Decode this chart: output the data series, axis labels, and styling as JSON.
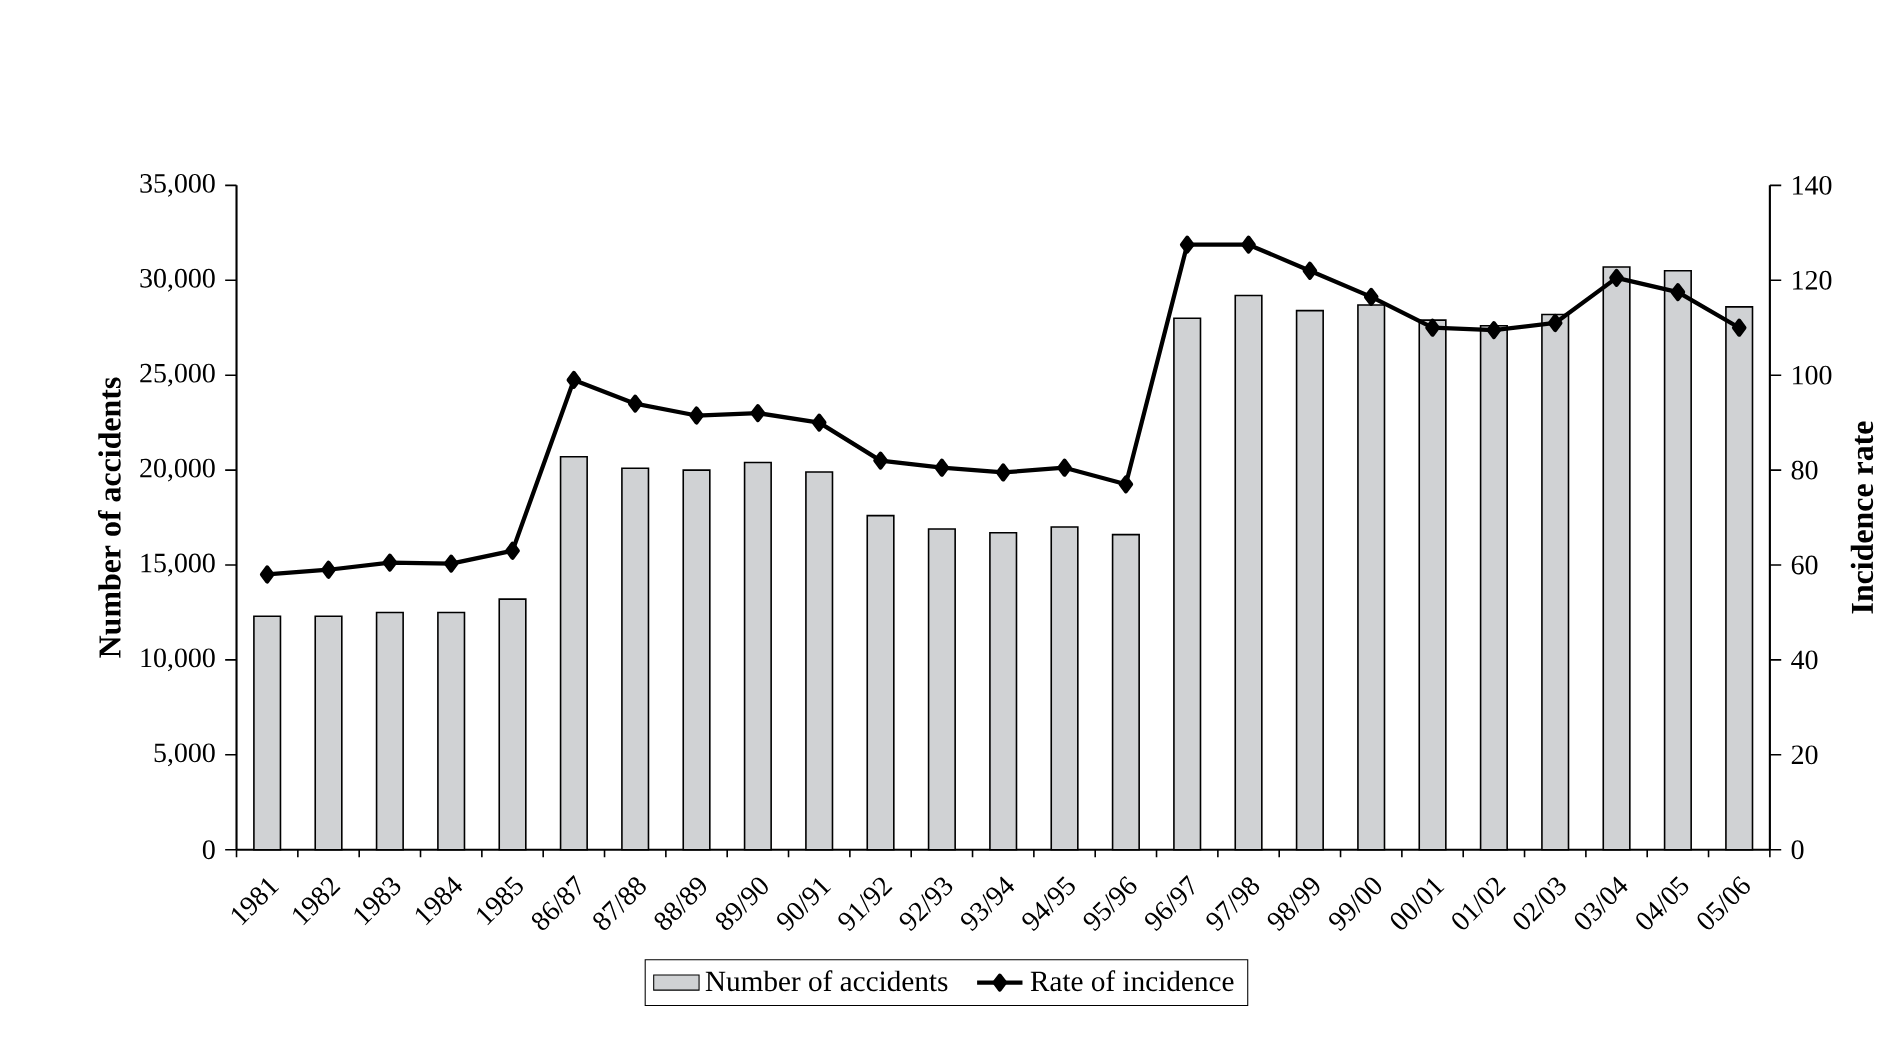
{
  "chart_data": {
    "type": "bar",
    "categories": [
      "1981",
      "1982",
      "1983",
      "1984",
      "1985",
      "86/87",
      "87/88",
      "88/89",
      "89/90",
      "90/91",
      "91/92",
      "92/93",
      "93/94",
      "94/95",
      "95/96",
      "96/97",
      "97/98",
      "98/99",
      "99/00",
      "00/01",
      "01/02",
      "02/03",
      "03/04",
      "04/05",
      "05/06"
    ],
    "series": [
      {
        "name": "Number of accidents",
        "color": "#d0d2d4",
        "values": [
          12300,
          12300,
          12500,
          12500,
          13200,
          20700,
          20100,
          20000,
          20400,
          19900,
          17600,
          16900,
          16700,
          17000,
          16600,
          28000,
          29200,
          28400,
          28700,
          27900,
          27600,
          28200,
          30700,
          30500,
          28600
        ]
      },
      {
        "name": "Rate of incidence",
        "type": "line",
        "axis": "y2",
        "color": "#000000",
        "marker": "diamond",
        "values": [
          58,
          59,
          60.5,
          60.3,
          63,
          99,
          94,
          91.5,
          92,
          90,
          82,
          80.5,
          79.5,
          80.5,
          77,
          127.5,
          127.5,
          122,
          116.5,
          110,
          109.5,
          111,
          120.5,
          117.5,
          110
        ]
      }
    ],
    "ylabel": "Number of accidents",
    "y2label": "Incidence rate",
    "ylim": [
      0,
      35000
    ],
    "yticks": [
      {
        "value": 0,
        "label": "0"
      },
      {
        "value": 5000,
        "label": "5,000"
      },
      {
        "value": 10000,
        "label": "10,000"
      },
      {
        "value": 15000,
        "label": "15,000"
      },
      {
        "value": 20000,
        "label": "20,000"
      },
      {
        "value": 25000,
        "label": "25,000"
      },
      {
        "value": 30000,
        "label": "30,000"
      },
      {
        "value": 35000,
        "label": "35,000"
      }
    ],
    "y2lim": [
      0,
      140
    ],
    "y2ticks": [
      0,
      20,
      40,
      60,
      80,
      100,
      120,
      140
    ],
    "grid": false,
    "legend": "bottom"
  }
}
